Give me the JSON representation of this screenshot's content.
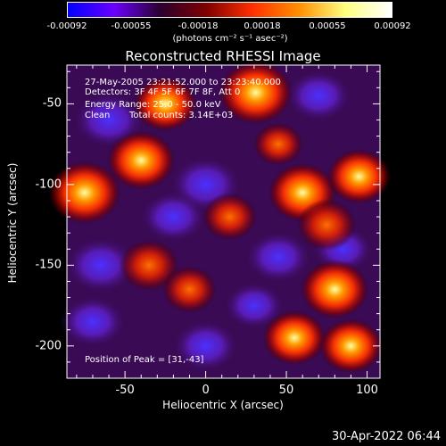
{
  "colorbar": {
    "tick_labels": [
      "-0.00092",
      "-0.00055",
      "-0.00018",
      "0.00018",
      "0.00055",
      "0.00092"
    ],
    "units": "(photons cm⁻² s⁻¹ asec⁻²)",
    "colors": [
      "#0000ff",
      "#6a00ff",
      "#2a0030",
      "#800000",
      "#ff3000",
      "#ff9000",
      "#ffff80",
      "#ffffff"
    ]
  },
  "info": {
    "time_range": "27-May-2005 23:21:52.000 to 23:23:40.000",
    "detectors": "Detectors: 3F 4F 5F 6F 7F 8F, Att 0",
    "energy_range": "Energy Range: 25.0 - 50.0 keV",
    "method": "Clean",
    "total_counts": "Total counts: 3.14E+03",
    "peak_position": "Position of Peak = [31,-43]"
  },
  "footer": {
    "date": "30-Apr-2022 06:44"
  },
  "chart_data": {
    "type": "heatmap",
    "title": "Reconstructed RHESSI Image",
    "xlabel": "Heliocentric X (arcsec)",
    "ylabel": "Heliocentric Y (arcsec)",
    "xlim": [
      -86,
      108
    ],
    "ylim": [
      -220,
      -26
    ],
    "x_ticks": [
      -50,
      0,
      50,
      100
    ],
    "y_ticks": [
      -50,
      -100,
      -150,
      -200
    ],
    "value_range": [
      -0.00092,
      0.00092
    ],
    "hotspots": [
      {
        "x": 31,
        "y": -43,
        "value": 0.00092
      },
      {
        "x": -25,
        "y": -50,
        "value": 0.0007
      },
      {
        "x": -40,
        "y": -85,
        "value": 0.0008
      },
      {
        "x": -75,
        "y": -105,
        "value": 0.0009
      },
      {
        "x": 60,
        "y": -105,
        "value": 0.0008
      },
      {
        "x": 95,
        "y": -95,
        "value": 0.0007
      },
      {
        "x": -35,
        "y": -150,
        "value": 0.0006
      },
      {
        "x": 80,
        "y": -165,
        "value": 0.0008
      },
      {
        "x": 55,
        "y": -195,
        "value": 0.0007
      },
      {
        "x": 90,
        "y": -200,
        "value": 0.0007
      },
      {
        "x": -10,
        "y": -165,
        "value": 0.0005
      },
      {
        "x": 15,
        "y": -120,
        "value": 0.0005
      },
      {
        "x": 75,
        "y": -125,
        "value": 0.0006
      },
      {
        "x": 45,
        "y": -75,
        "value": 0.0004
      }
    ],
    "coldspots": [
      {
        "x": -60,
        "y": -60,
        "value": -0.0006
      },
      {
        "x": 0,
        "y": -100,
        "value": -0.0006
      },
      {
        "x": -20,
        "y": -120,
        "value": -0.0005
      },
      {
        "x": -65,
        "y": -150,
        "value": -0.0006
      },
      {
        "x": 45,
        "y": -145,
        "value": -0.0005
      },
      {
        "x": 70,
        "y": -45,
        "value": -0.0005
      },
      {
        "x": -70,
        "y": -185,
        "value": -0.0005
      },
      {
        "x": 0,
        "y": -200,
        "value": -0.0005
      },
      {
        "x": 30,
        "y": -175,
        "value": -0.0004
      },
      {
        "x": 85,
        "y": -140,
        "value": -0.0004
      }
    ]
  }
}
